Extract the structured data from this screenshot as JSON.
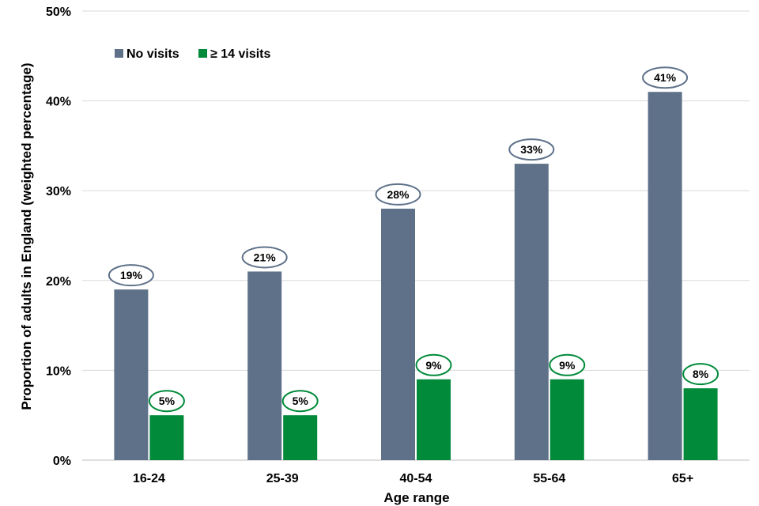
{
  "chart_data": {
    "type": "bar",
    "categories": [
      "16-24",
      "25-39",
      "40-54",
      "55-64",
      "65+"
    ],
    "series": [
      {
        "name": "No visits",
        "values": [
          19,
          21,
          28,
          33,
          41
        ],
        "labels": [
          "19%",
          "21%",
          "28%",
          "33%",
          "41%"
        ],
        "color": "#5e7189"
      },
      {
        "name": "≥ 14 visits",
        "values": [
          5,
          5,
          9,
          9,
          8
        ],
        "labels": [
          "5%",
          "5%",
          "9%",
          "9%",
          "8%"
        ],
        "color": "#008a3a"
      }
    ],
    "xlabel": "Age range",
    "ylabel": "Proportion of adults in England (weighted percentage)",
    "ylim": [
      0,
      50
    ],
    "yticks": [
      0,
      10,
      20,
      30,
      40,
      50
    ],
    "ytick_labels": [
      "0%",
      "10%",
      "20%",
      "30%",
      "40%",
      "50%"
    ],
    "grid": true,
    "legend": "top-left"
  }
}
